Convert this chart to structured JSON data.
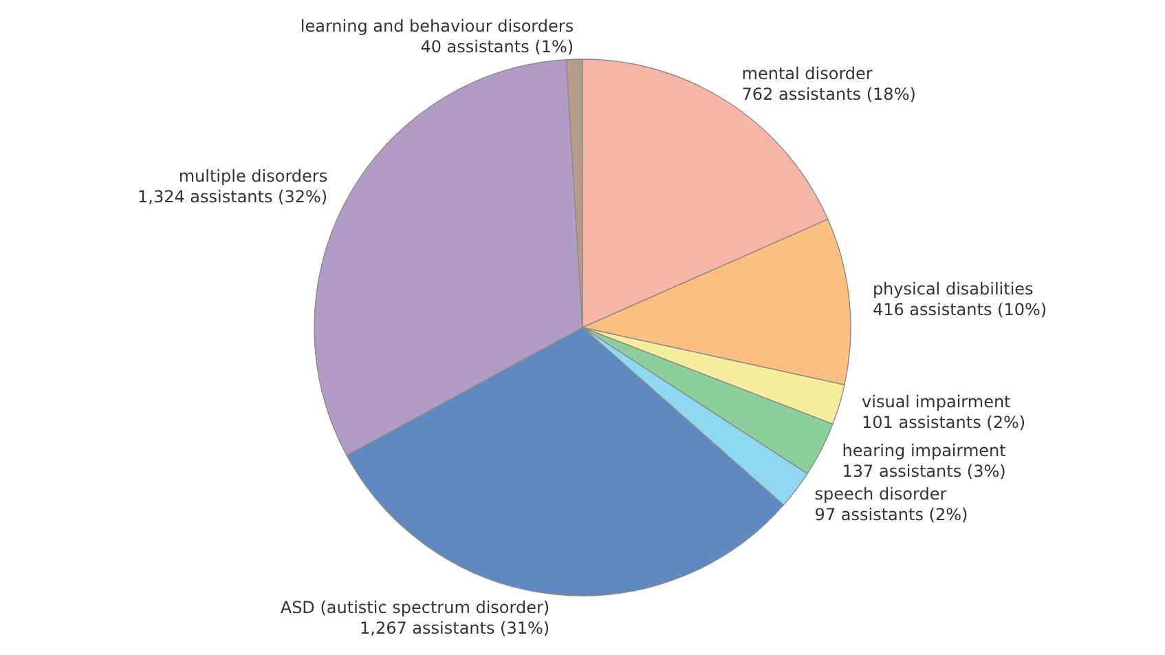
{
  "chart_data": {
    "type": "pie",
    "categories": [
      "mental disorder",
      "physical disabilities",
      "visual impairment",
      "hearing impairment",
      "speech disorder",
      "ASD (autistic spectrum disorder)",
      "multiple disorders",
      "learning and behaviour disorders"
    ],
    "values": [
      762,
      416,
      101,
      137,
      97,
      1267,
      1324,
      40
    ],
    "value_labels": [
      "762 assistants (18%)",
      "416 assistants (10%)",
      "101 assistants (2%)",
      "137 assistants (3%)",
      "97 assistants (2%)",
      "1,267 assistants (31%)",
      "1,324 assistants (32%)",
      "40 assistants (1%)"
    ],
    "colors": [
      "#f7b6a5",
      "#fdbf80",
      "#f5ec9c",
      "#8dcf9c",
      "#8dd8ef",
      "#5f89c0",
      "#b09cc5",
      "#b89c8a"
    ]
  }
}
